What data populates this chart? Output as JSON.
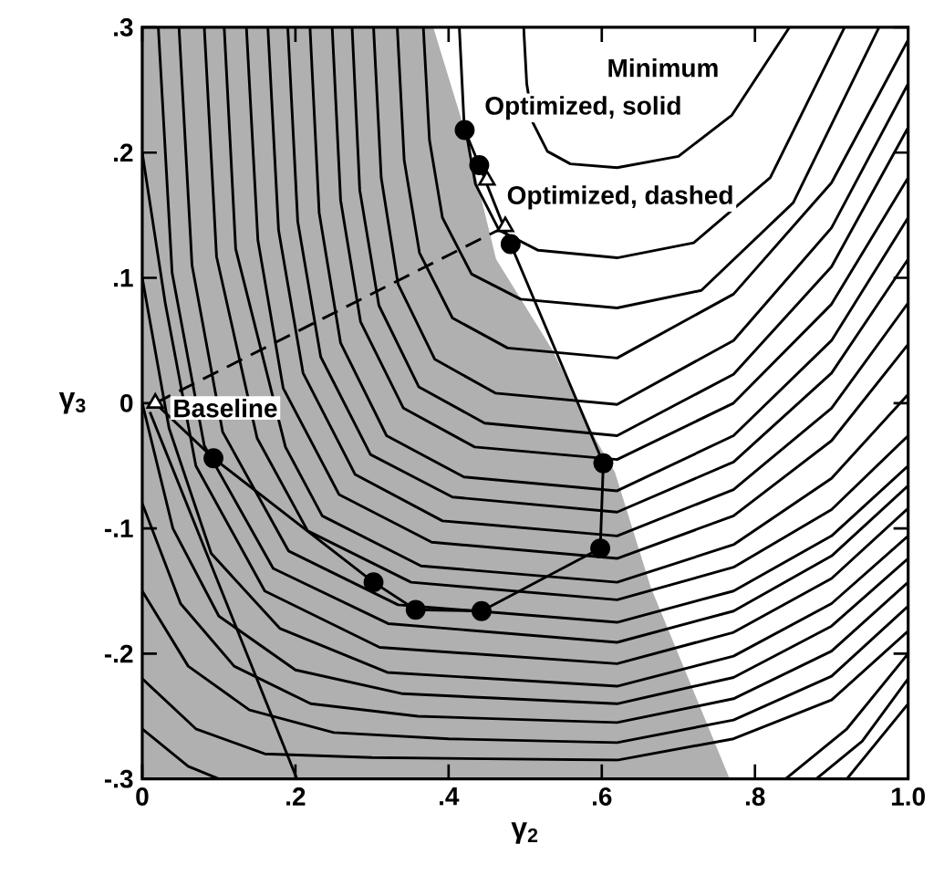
{
  "chart_data": {
    "type": "line",
    "xlabel": "γ$_{2}$",
    "ylabel": "γ$_{3}$",
    "xlim": [
      0,
      1.0
    ],
    "ylim": [
      -0.3,
      0.3
    ],
    "xticks": [
      0,
      {
        "value": 0.2,
        "label": ".2"
      },
      {
        "value": 0.4,
        "label": ".4"
      },
      {
        "value": 0.6,
        "label": ".6"
      },
      {
        "value": 0.8,
        "label": ".8"
      },
      {
        "value": 1.0,
        "label": "1.0"
      }
    ],
    "yticks": [
      {
        "value": -0.3,
        "label": "-.3"
      },
      {
        "value": -0.2,
        "label": "-.2"
      },
      {
        "value": -0.1,
        "label": "-.1"
      },
      0,
      {
        "value": 0.1,
        "label": ".1"
      },
      {
        "value": 0.2,
        "label": ".2"
      },
      {
        "value": 0.3,
        "label": ".3"
      }
    ],
    "annotations": [
      "Minimum",
      {
        "text": "Optimized, solid",
        "x": 0.421,
        "y": 0.218
      },
      {
        "text": "Optimized, dashed",
        "x": 0.45,
        "y": 0.178
      },
      {
        "text": "Baseline",
        "x": 0.017,
        "y": 0
      }
    ],
    "series": [
      {
        "type": "area",
        "color": "#b0b0b0",
        "x": [
          0,
          0,
          0.38,
          0.42,
          0.462,
          0.536,
          0.593,
          0.617,
          0.664,
          0.767
        ],
        "values": [
          -0.3,
          0.3,
          0.3,
          0.22,
          0.115,
          0.042,
          -0.03,
          -0.055,
          -0.147,
          -0.3
        ]
      },
      {
        "color": "#000000",
        "x": [
          0.498,
          0.502,
          0.51,
          0.529,
          0.559,
          0.62,
          0.7,
          0.77,
          0.845
        ],
        "values": [
          0.3,
          0.255,
          0.224,
          0.201,
          0.191,
          0.188,
          0.197,
          0.23,
          0.3
        ]
      },
      {
        "color": "#000000",
        "x": [
          0.414,
          0.42,
          0.435,
          0.466,
          0.517,
          0.62,
          0.72,
          0.82,
          0.917
        ],
        "values": [
          0.3,
          0.226,
          0.175,
          0.138,
          0.122,
          0.116,
          0.128,
          0.18,
          0.3
        ]
      },
      {
        "color": "#000000",
        "x": [
          0.367,
          0.375,
          0.392,
          0.43,
          0.494,
          0.62,
          0.73,
          0.85,
          0.962
        ],
        "values": [
          0.3,
          0.21,
          0.148,
          0.103,
          0.083,
          0.076,
          0.09,
          0.16,
          0.3
        ]
      },
      {
        "color": "#000000",
        "x": [
          0.333,
          0.342,
          0.362,
          0.405,
          0.477,
          0.62,
          0.772,
          0.9,
          1.0
        ],
        "values": [
          0.3,
          0.194,
          0.12,
          0.068,
          0.044,
          0.036,
          0.087,
          0.176,
          0.29
        ]
      },
      {
        "color": "#000000",
        "x": [
          0.302,
          0.312,
          0.334,
          0.382,
          0.461,
          0.62,
          0.772,
          0.9,
          1.0
        ],
        "values": [
          0.3,
          0.18,
          0.095,
          0.035,
          0.008,
          -0.001,
          0.05,
          0.14,
          0.255
        ]
      },
      {
        "color": "#000000",
        "x": [
          0.274,
          0.284,
          0.309,
          0.361,
          0.447,
          0.62,
          0.772,
          0.9,
          1.0
        ],
        "values": [
          0.3,
          0.17,
          0.078,
          0.013,
          -0.016,
          -0.026,
          0.023,
          0.109,
          0.22
        ]
      },
      {
        "color": "#000000",
        "x": [
          0.248,
          0.259,
          0.285,
          0.341,
          0.434,
          0.62,
          0.772,
          0.9,
          1.0
        ],
        "values": [
          0.3,
          0.162,
          0.065,
          -0.004,
          -0.035,
          -0.045,
          0.0,
          0.079,
          0.18
        ]
      },
      {
        "color": "#000000",
        "x": [
          0.219,
          0.231,
          0.259,
          0.319,
          0.42,
          0.62,
          0.772,
          0.9,
          1.0
        ],
        "values": [
          0.3,
          0.152,
          0.048,
          -0.026,
          -0.059,
          -0.07,
          -0.026,
          0.05,
          0.148
        ]
      },
      {
        "color": "#000000",
        "x": [
          0.19,
          0.203,
          0.233,
          0.298,
          0.405,
          0.62,
          0.772,
          0.9,
          1.0
        ],
        "values": [
          0.3,
          0.145,
          0.037,
          -0.041,
          -0.075,
          -0.087,
          -0.047,
          0.024,
          0.115
        ]
      },
      {
        "color": "#000000",
        "x": [
          0.164,
          0.178,
          0.21,
          0.278,
          0.392,
          0.62,
          0.772,
          0.9,
          1.0
        ],
        "values": [
          0.3,
          0.138,
          0.024,
          -0.057,
          -0.094,
          -0.106,
          -0.069,
          -0.004,
          0.08
        ]
      },
      {
        "color": "#000000",
        "x": [
          0.136,
          0.151,
          0.184,
          0.257,
          0.378,
          0.62,
          0.772,
          0.9,
          1.0
        ],
        "values": [
          0.3,
          0.13,
          0.012,
          -0.073,
          -0.111,
          -0.124,
          -0.09,
          -0.03,
          0.047
        ]
      },
      {
        "color": "#000000",
        "x": [
          0.107,
          0.122,
          0.187,
          0.235,
          0.364,
          0.62,
          0.772,
          0.9,
          1.0
        ],
        "values": [
          0.3,
          0.123,
          -0.035,
          -0.09,
          -0.13,
          -0.143,
          -0.113,
          -0.06,
          0.007
        ]
      },
      {
        "color": "#000000",
        "x": [
          0.081,
          0.097,
          0.15,
          0.216,
          0.351,
          0.62,
          0.772,
          0.9,
          1.0
        ],
        "values": [
          0.3,
          0.117,
          -0.028,
          -0.102,
          -0.143,
          -0.157,
          -0.131,
          -0.085,
          -0.026
        ]
      },
      {
        "color": "#000000",
        "x": [
          0.048,
          0.065,
          0.105,
          0.191,
          0.334,
          0.62,
          0.772,
          0.9,
          1.0
        ],
        "values": [
          0.3,
          0.11,
          -0.023,
          -0.118,
          -0.161,
          -0.175,
          -0.15,
          -0.106,
          -0.05
        ]
      },
      {
        "color": "#000000",
        "x": [
          0.021,
          0.039,
          0.081,
          0.171,
          0.321,
          0.62,
          0.772,
          0.9,
          1.0
        ],
        "values": [
          0.3,
          0.104,
          -0.034,
          -0.132,
          -0.176,
          -0.191,
          -0.166,
          -0.122,
          -0.066
        ]
      },
      {
        "color": "#000000",
        "x": [
          0,
          0.03,
          0.07,
          0.16,
          0.31,
          0.62,
          0.772,
          0.9,
          1.0
        ],
        "values": [
          0.2,
          0.08,
          -0.05,
          -0.15,
          -0.195,
          -0.208,
          -0.183,
          -0.14,
          -0.084
        ]
      },
      {
        "color": "#000000",
        "x": [
          0,
          0.035,
          0.09,
          0.18,
          0.32,
          0.62,
          0.772,
          0.9,
          1.0
        ],
        "values": [
          0.1,
          -0.02,
          -0.12,
          -0.18,
          -0.215,
          -0.226,
          -0.202,
          -0.16,
          -0.106
        ]
      },
      {
        "color": "#000000",
        "x": [
          0,
          0.04,
          0.1,
          0.2,
          0.34,
          0.62,
          0.772,
          0.9,
          1.0
        ],
        "values": [
          0,
          -0.1,
          -0.17,
          -0.213,
          -0.232,
          -0.24,
          -0.219,
          -0.178,
          -0.124
        ]
      },
      {
        "color": "#000000",
        "x": [
          0,
          0.05,
          0.12,
          0.22,
          0.36,
          0.62,
          0.772,
          0.9,
          1.0
        ],
        "values": [
          -0.08,
          -0.16,
          -0.21,
          -0.24,
          -0.25,
          -0.255,
          -0.236,
          -0.198,
          -0.143
        ]
      },
      {
        "color": "#000000",
        "x": [
          0,
          0.06,
          0.14,
          0.25,
          0.4,
          0.62,
          0.772,
          0.9,
          1.0
        ],
        "values": [
          -0.15,
          -0.21,
          -0.245,
          -0.263,
          -0.268,
          -0.271,
          -0.253,
          -0.218,
          -0.162
        ]
      },
      {
        "color": "#000000",
        "x": [
          0,
          0.07,
          0.16,
          0.3,
          0.62,
          0.772,
          0.9,
          1.0
        ],
        "values": [
          -0.22,
          -0.26,
          -0.28,
          -0.283,
          -0.285,
          -0.268,
          -0.237,
          -0.182
        ]
      },
      {
        "color": "#000000",
        "x": [
          0,
          0.06,
          0.1
        ],
        "values": [
          -0.26,
          -0.29,
          -0.3
        ]
      },
      {
        "color": "#000000",
        "x": [
          0.84,
          0.92,
          1.0
        ],
        "values": [
          -0.3,
          -0.26,
          -0.2
        ]
      },
      {
        "color": "#000000",
        "x": [
          0.88,
          0.94,
          1.0
        ],
        "values": [
          -0.3,
          -0.27,
          -0.22
        ]
      },
      {
        "color": "#000000",
        "x": [
          0.92,
          1.0
        ],
        "values": [
          -0.3,
          -0.24
        ]
      },
      {
        "color": "#000000",
        "x": [
          0.01,
          0.202
        ],
        "values": [
          -0.007,
          -0.3
        ]
      },
      {
        "color": "#000000",
        "x": [
          0.017,
          0.093,
          0.302,
          0.357,
          0.443,
          0.598,
          0.602,
          0.481,
          0.44,
          0.421
        ],
        "values": [
          0,
          -0.044,
          -0.143,
          -0.165,
          -0.166,
          -0.116,
          -0.048,
          0.127,
          0.19,
          0.218
        ]
      },
      {
        "color": "#000000",
        "line_style": "dashed",
        "x": [
          0.017,
          0.474
        ],
        "values": [
          0,
          0.141
        ]
      },
      {
        "type": "scatter",
        "marker": "circle",
        "color": "#000000",
        "x": [
          0.093,
          0.302,
          0.357,
          0.443,
          0.598,
          0.602,
          0.481,
          0.44,
          0.421
        ],
        "values": [
          -0.044,
          -0.143,
          -0.165,
          -0.166,
          -0.116,
          -0.048,
          0.127,
          0.19,
          0.218
        ]
      },
      {
        "type": "scatter",
        "marker": "triangle",
        "color": "#000000",
        "x": [
          0.017,
          0.474,
          0.45
        ],
        "values": [
          0,
          0.141,
          0.178
        ]
      }
    ]
  }
}
